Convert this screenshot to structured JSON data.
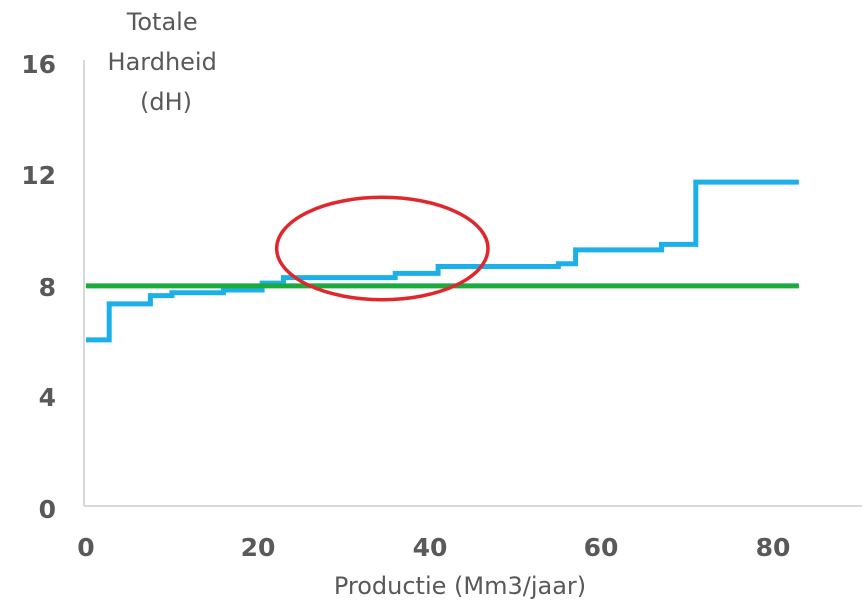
{
  "chart_data": {
    "type": "line",
    "ylabel_lines": [
      "Totale",
      "Hardheid",
      "(dH)"
    ],
    "xlabel": "Productie (Mm3/jaar)",
    "xlim": [
      0,
      90
    ],
    "ylim": [
      0,
      16
    ],
    "x_ticks": [
      0,
      20,
      40,
      60,
      80
    ],
    "y_ticks": [
      0,
      4,
      8,
      12,
      16
    ],
    "grid": false,
    "series": [
      {
        "step": true,
        "color": "#1cb0e8",
        "x": [
          0,
          2.7,
          2.7,
          7.5,
          7.5,
          10,
          10,
          16,
          16,
          20.5,
          20.5,
          23,
          23,
          36,
          36,
          41,
          41,
          55,
          55,
          57,
          57,
          67,
          67,
          71,
          71,
          83
        ],
        "y": [
          6.0,
          6.0,
          7.3,
          7.3,
          7.6,
          7.6,
          7.7,
          7.7,
          7.8,
          7.8,
          8.05,
          8.05,
          8.25,
          8.25,
          8.4,
          8.4,
          8.65,
          8.65,
          8.75,
          8.75,
          9.25,
          9.25,
          9.45,
          9.45,
          11.7,
          11.7
        ]
      },
      {
        "step": false,
        "color": "#1aaa3d",
        "x": [
          0,
          83
        ],
        "y": [
          7.95,
          7.95
        ]
      }
    ],
    "annotations": [
      {
        "type": "ellipse",
        "cx": 34.5,
        "cy": 9.3,
        "rx": 12.3,
        "ry": 1.85,
        "color": "#e0272d"
      }
    ]
  }
}
